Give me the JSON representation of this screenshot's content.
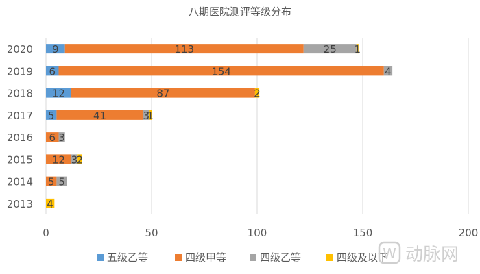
{
  "chart_data": {
    "type": "bar",
    "orientation": "horizontal",
    "stacked": true,
    "title": "八期医院测评等级分布",
    "categories": [
      "2013",
      "2014",
      "2015",
      "2016",
      "2017",
      "2018",
      "2019",
      "2020"
    ],
    "series": [
      {
        "name": "五级乙等",
        "color": "#5B9BD5",
        "values": [
          0,
          0,
          0,
          0,
          5,
          12,
          6,
          9
        ]
      },
      {
        "name": "四级甲等",
        "color": "#ED7D31",
        "values": [
          0,
          5,
          12,
          6,
          41,
          87,
          154,
          113
        ]
      },
      {
        "name": "四级乙等",
        "color": "#A5A5A5",
        "values": [
          0,
          5,
          3,
          3,
          3,
          0,
          4,
          25
        ]
      },
      {
        "name": "四级及以下",
        "color": "#FFC000",
        "values": [
          4,
          0,
          2,
          0,
          1,
          2,
          0,
          1
        ]
      }
    ],
    "xlim": [
      0,
      200
    ],
    "xticks": [
      0,
      50,
      100,
      150,
      200
    ],
    "grid": "vertical",
    "legend": "bottom"
  },
  "watermark": {
    "icon": "dongmai-logo-icon",
    "text": "动脉网"
  }
}
